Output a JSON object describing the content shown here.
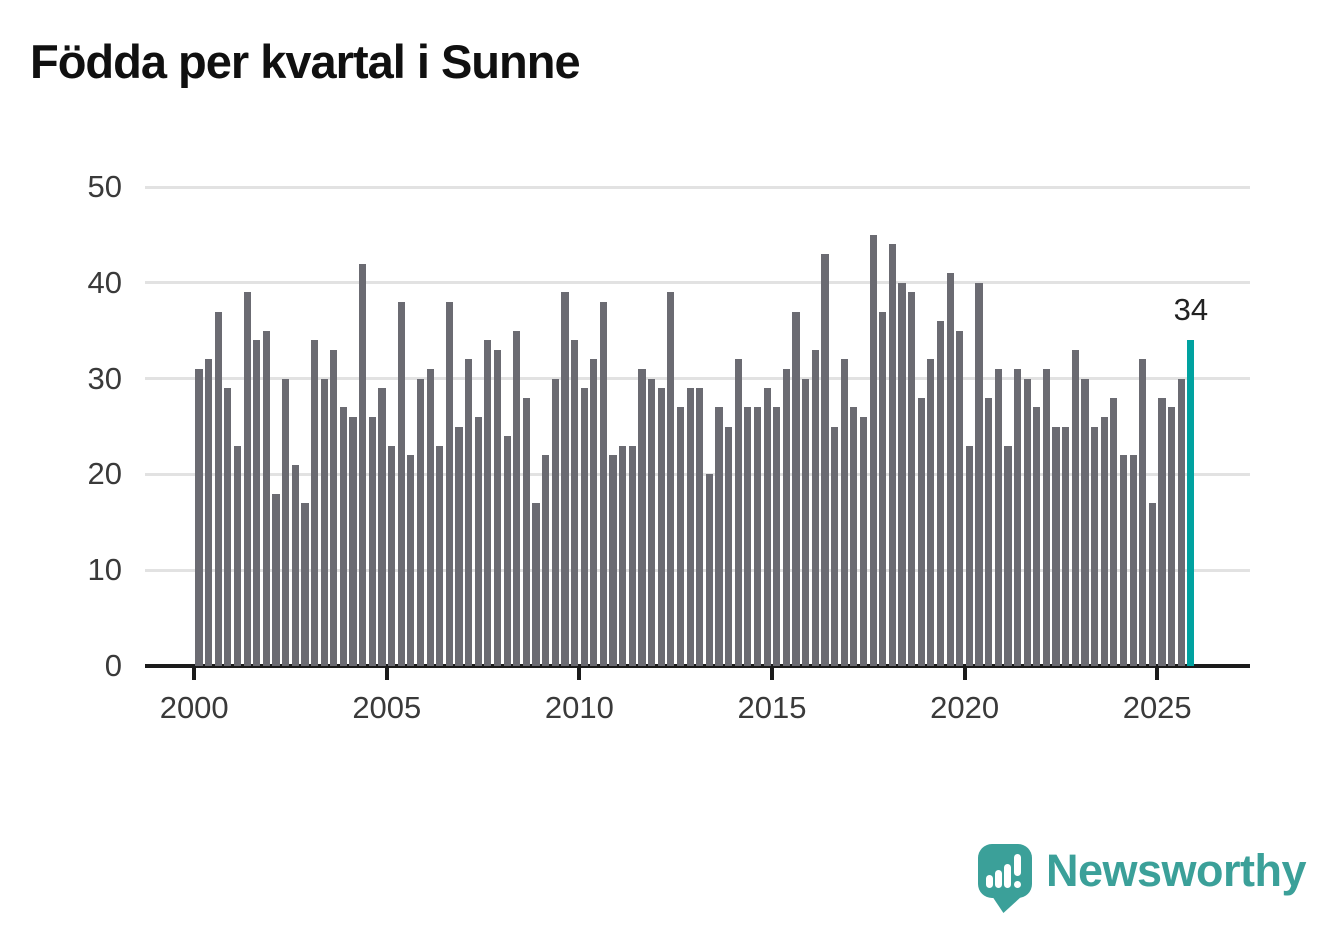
{
  "title": "Födda per kvartal i Sunne",
  "chart_data": {
    "type": "bar",
    "title": "Födda per kvartal i Sunne",
    "x_start": "2000-Q1",
    "frequency": "quarterly",
    "values": [
      31,
      32,
      37,
      29,
      23,
      39,
      34,
      35,
      18,
      30,
      21,
      17,
      34,
      30,
      33,
      27,
      26,
      42,
      26,
      29,
      23,
      38,
      22,
      30,
      31,
      23,
      38,
      25,
      32,
      26,
      34,
      33,
      24,
      35,
      28,
      17,
      22,
      30,
      39,
      34,
      29,
      32,
      38,
      22,
      23,
      23,
      31,
      30,
      29,
      39,
      27,
      29,
      29,
      20,
      27,
      25,
      32,
      27,
      27,
      29,
      27,
      31,
      37,
      30,
      33,
      43,
      25,
      32,
      27,
      26,
      45,
      37,
      44,
      40,
      39,
      28,
      32,
      36,
      41,
      35,
      23,
      40,
      28,
      31,
      23,
      31,
      30,
      27,
      31,
      25,
      25,
      33,
      30,
      25,
      26,
      28,
      22,
      22,
      32,
      17,
      28,
      27,
      30,
      34
    ],
    "highlight_last": {
      "value": 34,
      "label": "34"
    },
    "ylim": [
      0,
      50
    ],
    "y_ticks": [
      "0",
      "10",
      "20",
      "30",
      "40",
      "50"
    ],
    "x_tick_labels": [
      "2000",
      "2005",
      "2010",
      "2015",
      "2020",
      "2025"
    ],
    "grid": true,
    "legend": "none",
    "colors": {
      "bar": "#6b6b72",
      "highlight": "#00a2a0",
      "gridline": "#e2e2e2",
      "axis": "#1b1b1b",
      "tick_label": "#3a3a3a",
      "annotation_text": "#222222"
    }
  },
  "annotation": {
    "text": "34"
  },
  "branding": {
    "label": "Newsworthy",
    "color": "#3ba099",
    "icon": "newsworthy-logo-icon"
  }
}
